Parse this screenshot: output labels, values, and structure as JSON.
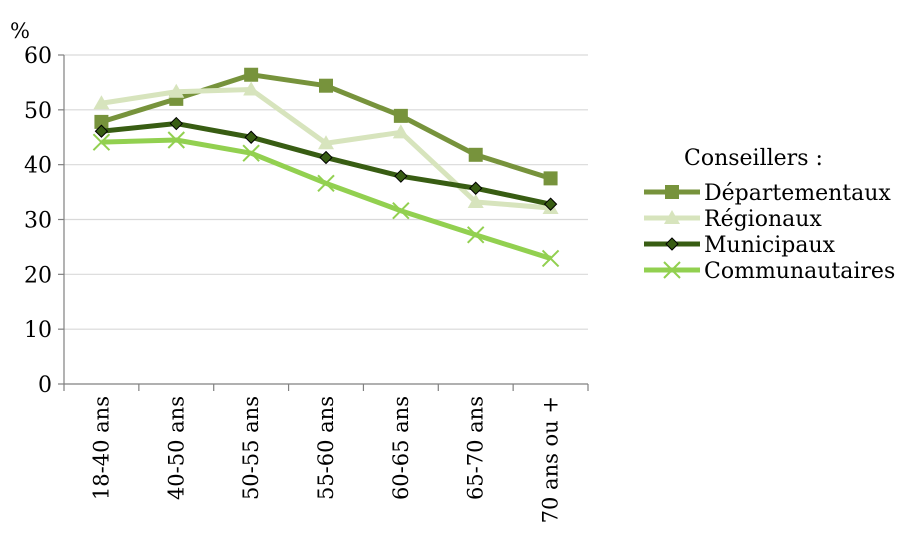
{
  "chart_data": {
    "type": "line",
    "title": "",
    "xlabel": "",
    "ylabel": "%",
    "ylim": [
      0,
      60
    ],
    "yticks": [
      0,
      10,
      20,
      30,
      40,
      50,
      60
    ],
    "grid": "horizontal",
    "categories": [
      "18-40 ans",
      "40-50 ans",
      "50-55 ans",
      "55-60 ans",
      "60-65 ans",
      "65-70 ans",
      "70 ans ou +"
    ],
    "legend_title": "Conseillers :",
    "legend_position": "right",
    "series": [
      {
        "name": "Départementaux",
        "marker": "square",
        "color": "#77933c",
        "values": [
          47.8,
          52.0,
          56.4,
          54.4,
          48.9,
          41.8,
          37.5
        ]
      },
      {
        "name": "Régionaux",
        "marker": "triangle",
        "color": "#d7e4bd",
        "values": [
          51.2,
          53.3,
          53.7,
          43.9,
          45.9,
          33.2,
          32.1
        ]
      },
      {
        "name": "Municipaux",
        "marker": "diamond",
        "color": "#385d13",
        "values": [
          46.1,
          47.5,
          45.0,
          41.3,
          37.9,
          35.7,
          32.8
        ]
      },
      {
        "name": "Communautaires",
        "marker": "x",
        "color": "#92d050",
        "values": [
          44.1,
          44.5,
          42.1,
          36.6,
          31.6,
          27.2,
          22.9
        ]
      }
    ]
  }
}
